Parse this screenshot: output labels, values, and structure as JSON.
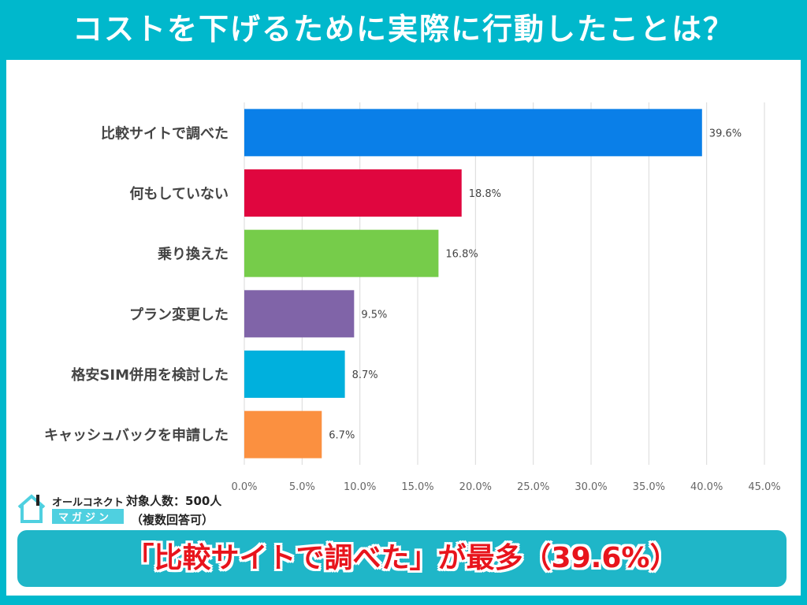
{
  "title": "コストを下げるために実際に行動したことは？",
  "logo": {
    "line1": "オールコネクト",
    "line2": "マガジン"
  },
  "respondents": {
    "line1": "対象人数：500人",
    "line2": "（複数回答可）"
  },
  "banner": "「比較サイトで調べた」が最多（39.6%）",
  "chart_data": {
    "type": "bar",
    "orientation": "horizontal",
    "categories": [
      "比較サイトで調べた",
      "何もしていない",
      "乗り換えた",
      "プラン変更した",
      "格安SIM併用を検討した",
      "キャッシュバックを申請した"
    ],
    "values": [
      39.6,
      18.8,
      16.8,
      9.5,
      8.7,
      6.7
    ],
    "data_labels": [
      "39.6%",
      "18.8%",
      "16.8%",
      "9.5%",
      "8.7%",
      "6.7%"
    ],
    "colors": [
      "#0a7fe8",
      "#e0063f",
      "#76cc4a",
      "#8064a8",
      "#00b0dd",
      "#fb9040"
    ],
    "xlim": [
      0,
      45
    ],
    "xticks": [
      "0.0%",
      "5.0%",
      "10.0%",
      "15.0%",
      "20.0%",
      "25.0%",
      "30.0%",
      "35.0%",
      "40.0%",
      "45.0%"
    ],
    "grid": true
  }
}
